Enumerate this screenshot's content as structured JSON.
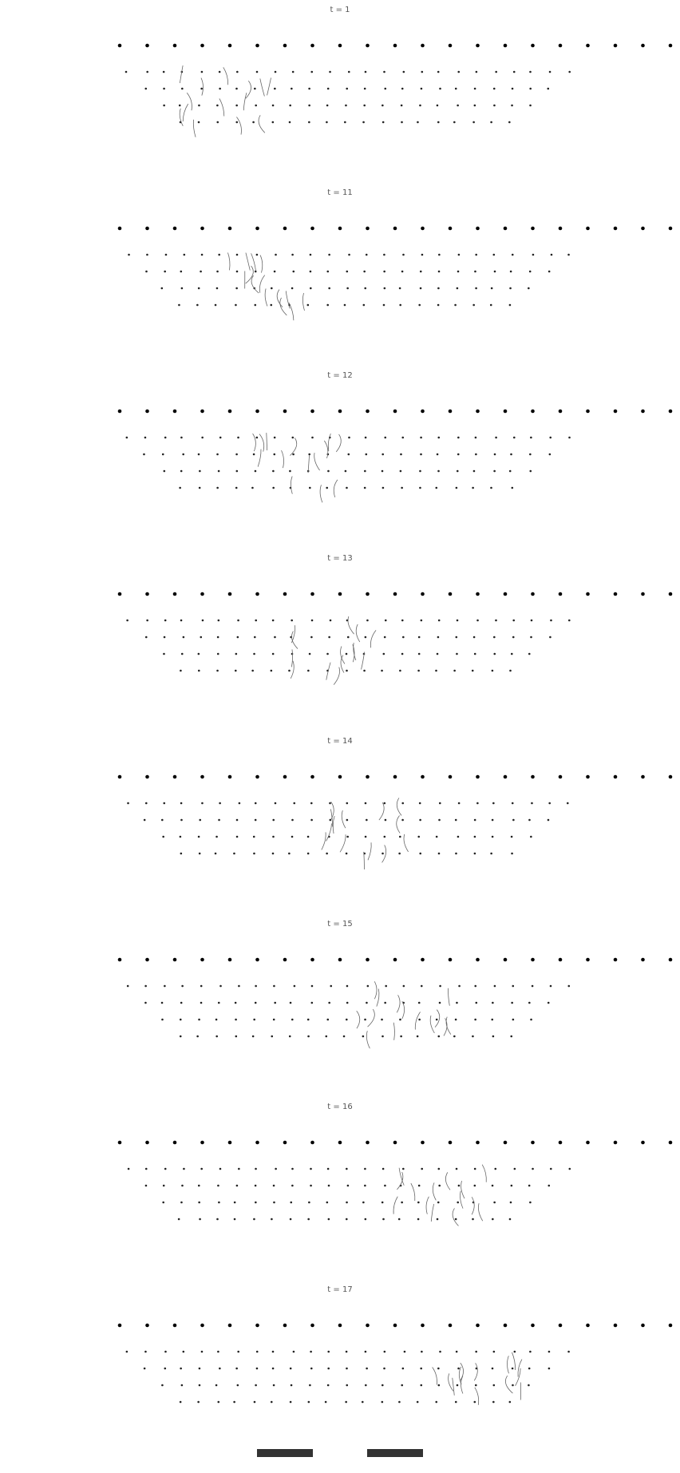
{
  "panels": [
    {
      "title": "t = 1"
    },
    {
      "title": "t = 11"
    },
    {
      "title": "t = 12"
    },
    {
      "title": "t = 13"
    },
    {
      "title": "t = 14"
    },
    {
      "title": "t = 15"
    },
    {
      "title": "t = 16"
    },
    {
      "title": "t = 17"
    }
  ]
}
